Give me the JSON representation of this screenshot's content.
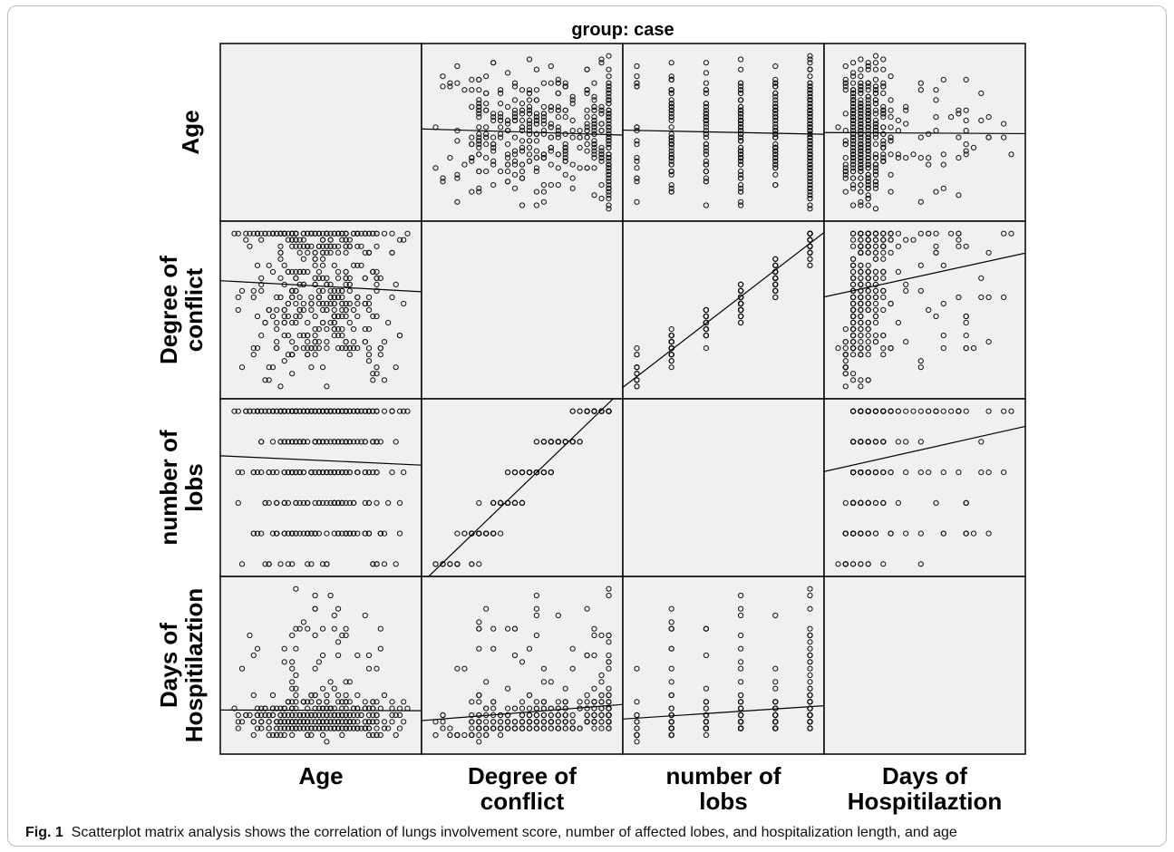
{
  "chart_data": {
    "type": "scatter",
    "title": "group: case",
    "variables": [
      {
        "id": "age",
        "label_lines": [
          "Age"
        ],
        "range": [
          0,
          100
        ]
      },
      {
        "id": "conflict",
        "label_lines": [
          "Degree of",
          "conflict"
        ],
        "range": [
          0,
          30
        ]
      },
      {
        "id": "lobes",
        "label_lines": [
          "number of",
          "lobs"
        ],
        "range": [
          0,
          6
        ]
      },
      {
        "id": "days",
        "label_lines": [
          "Days of",
          "Hospitilaztion"
        ],
        "range": [
          0,
          40
        ]
      }
    ],
    "grid": false,
    "fit_line": true,
    "legend": "none",
    "note": "Scatterplot matrix of case group; axis tick values are not printed, points are rendered from approximate distributions read off the figure"
  },
  "caption": {
    "label": "Fig. 1",
    "text": "Scatterplot matrix analysis shows the correlation of lungs involvement score, number of affected lobes, and hospitalization length, and age"
  }
}
